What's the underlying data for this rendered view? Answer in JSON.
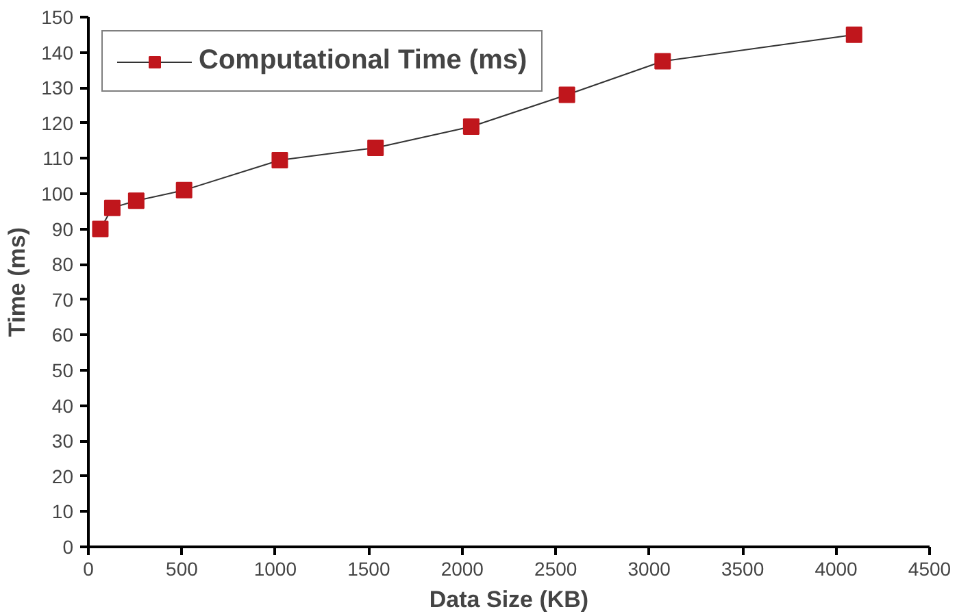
{
  "chart_data": {
    "type": "line",
    "xlabel": "Data Size (KB)",
    "ylabel": "Time (ms)",
    "x": [
      64,
      128,
      256,
      512,
      1024,
      1536,
      2048,
      2560,
      3072,
      4096
    ],
    "series": [
      {
        "name": "Computational Time (ms)",
        "color": "#c0161c",
        "values": [
          90,
          96,
          98,
          101,
          109.5,
          113,
          119,
          128,
          137.5,
          145
        ]
      }
    ],
    "xlim": [
      0,
      4500
    ],
    "ylim": [
      0,
      150
    ],
    "xticks": [
      0,
      500,
      1000,
      1500,
      2000,
      2500,
      3000,
      3500,
      4000,
      4500
    ],
    "yticks": [
      0,
      10,
      20,
      30,
      40,
      50,
      60,
      70,
      80,
      90,
      100,
      110,
      120,
      130,
      140,
      150
    ],
    "marker": "square",
    "line_style": "solid",
    "legend": "top left",
    "grid": false
  }
}
